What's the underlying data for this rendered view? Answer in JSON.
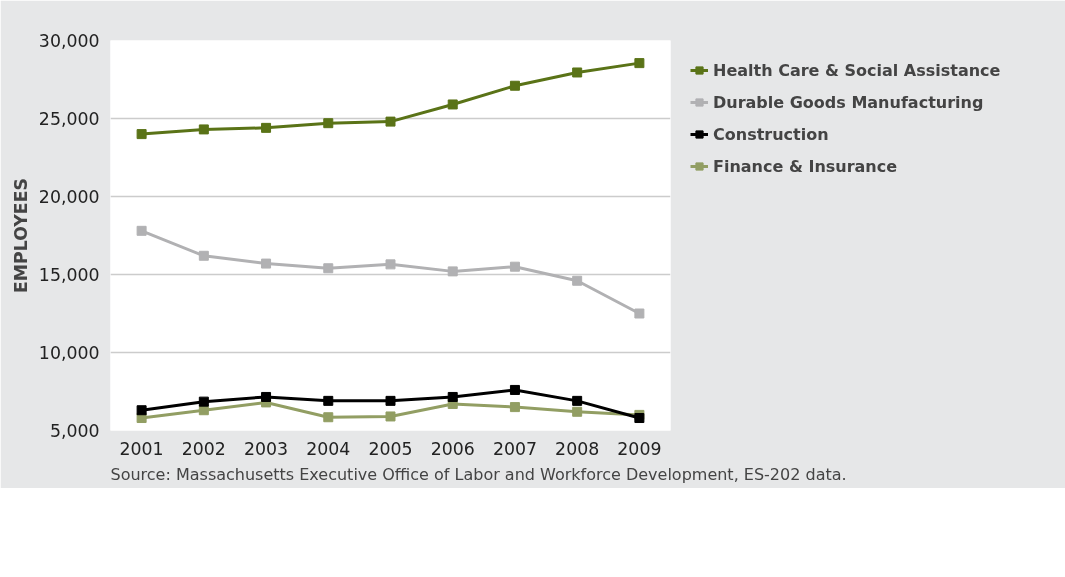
{
  "chart_data": {
    "type": "line",
    "ylabel": "EMPLOYEES",
    "categories": [
      "2001",
      "2002",
      "2003",
      "2004",
      "2005",
      "2006",
      "2007",
      "2008",
      "2009"
    ],
    "series": [
      {
        "name": "Health Care & Social Assistance",
        "color": "#5a7317",
        "values": [
          24000,
          24300,
          24400,
          24700,
          24800,
          25900,
          27100,
          27950,
          28550
        ]
      },
      {
        "name": "Durable Goods Manufacturing",
        "color": "#b1b1b3",
        "values": [
          17800,
          16200,
          15700,
          15400,
          15650,
          15200,
          15500,
          14600,
          12500
        ]
      },
      {
        "name": "Construction",
        "color": "#000000",
        "values": [
          6300,
          6850,
          7150,
          6900,
          6900,
          7150,
          7600,
          6900,
          5800
        ]
      },
      {
        "name": "Finance & Insurance",
        "color": "#929e63",
        "values": [
          5800,
          6300,
          6800,
          5850,
          5900,
          6700,
          6500,
          6200,
          6000
        ]
      }
    ],
    "ylim": [
      5000,
      30000
    ],
    "yticks": [
      {
        "value": 5000,
        "label": "5,000"
      },
      {
        "value": 10000,
        "label": "10,000"
      },
      {
        "value": 15000,
        "label": "15,000"
      },
      {
        "value": 20000,
        "label": "20,000"
      },
      {
        "value": 25000,
        "label": "25,000"
      },
      {
        "value": 30000,
        "label": "30,000"
      }
    ],
    "grid": "y",
    "legend": "right",
    "marker": "square",
    "line_style": "solid",
    "annotations": [
      "Source: Massachusetts Executive Office of Labor and Workforce Development, ES-202 data."
    ]
  }
}
